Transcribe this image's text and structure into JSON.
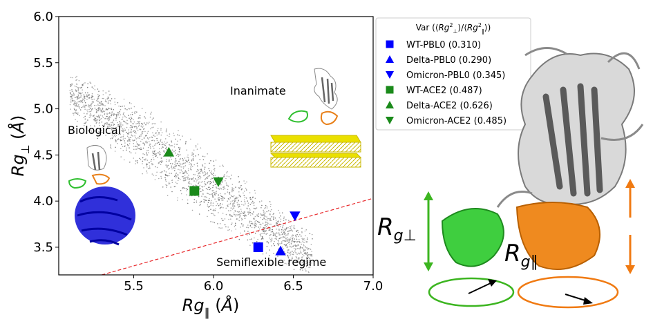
{
  "chart_data": {
    "type": "scatter",
    "xlabel": "Rg ∥ (Å)",
    "ylabel": "Rg ⊥ (Å)",
    "xlim": [
      5.03,
      7.0
    ],
    "ylim": [
      3.2,
      6.0
    ],
    "x_ticks": [
      "5.5",
      "6.0",
      "6.5",
      "7.0"
    ],
    "y_ticks": [
      "3.5",
      "4.0",
      "4.5",
      "5.0",
      "5.5",
      "6.0"
    ],
    "legend_title": "Var (⟨Rg²⊥⟩/⟨Rg²∥⟩)",
    "legend_position": "outside-top-right",
    "series": [
      {
        "name": "WT-PBL0 (0.310)",
        "marker": "square",
        "color": "#0000ff",
        "points": [
          [
            6.28,
            3.5
          ]
        ]
      },
      {
        "name": "Delta-PBL0 (0.290)",
        "marker": "triangle-up",
        "color": "#0000ff",
        "points": [
          [
            6.42,
            3.46
          ]
        ]
      },
      {
        "name": "Omicron-PBL0 (0.345)",
        "marker": "triangle-down",
        "color": "#0000ff",
        "points": [
          [
            6.51,
            3.84
          ]
        ]
      },
      {
        "name": "WT-ACE2 (0.487)",
        "marker": "square",
        "color": "#1a8a1a",
        "points": [
          [
            5.88,
            4.11
          ]
        ]
      },
      {
        "name": "Delta-ACE2 (0.626)",
        "marker": "triangle-up",
        "color": "#1a8a1a",
        "points": [
          [
            5.72,
            4.53
          ]
        ]
      },
      {
        "name": "Omicron-ACE2 (0.485)",
        "marker": "triangle-down",
        "color": "#1a8a1a",
        "points": [
          [
            6.03,
            4.21
          ]
        ]
      }
    ],
    "background_cloud": {
      "color": "#a8a8a8",
      "x_range": [
        5.1,
        6.62
      ],
      "y_range": [
        3.3,
        5.18
      ],
      "trend": "negative"
    },
    "reference_line": {
      "style": "dashed",
      "color": "#e8272a",
      "points": [
        [
          5.3,
          3.2
        ],
        [
          7.0,
          4.03
        ]
      ]
    },
    "annotations": [
      "Inanimate",
      "Biological",
      "Semiflexible regime"
    ],
    "grid": false
  },
  "right_panel": {
    "label_perp": "R",
    "label_perp_sub": "g⊥",
    "label_par": "R",
    "label_par_sub": "g∥",
    "arrow_color_green": "#3cb520",
    "arrow_color_orange": "#f07a12"
  }
}
